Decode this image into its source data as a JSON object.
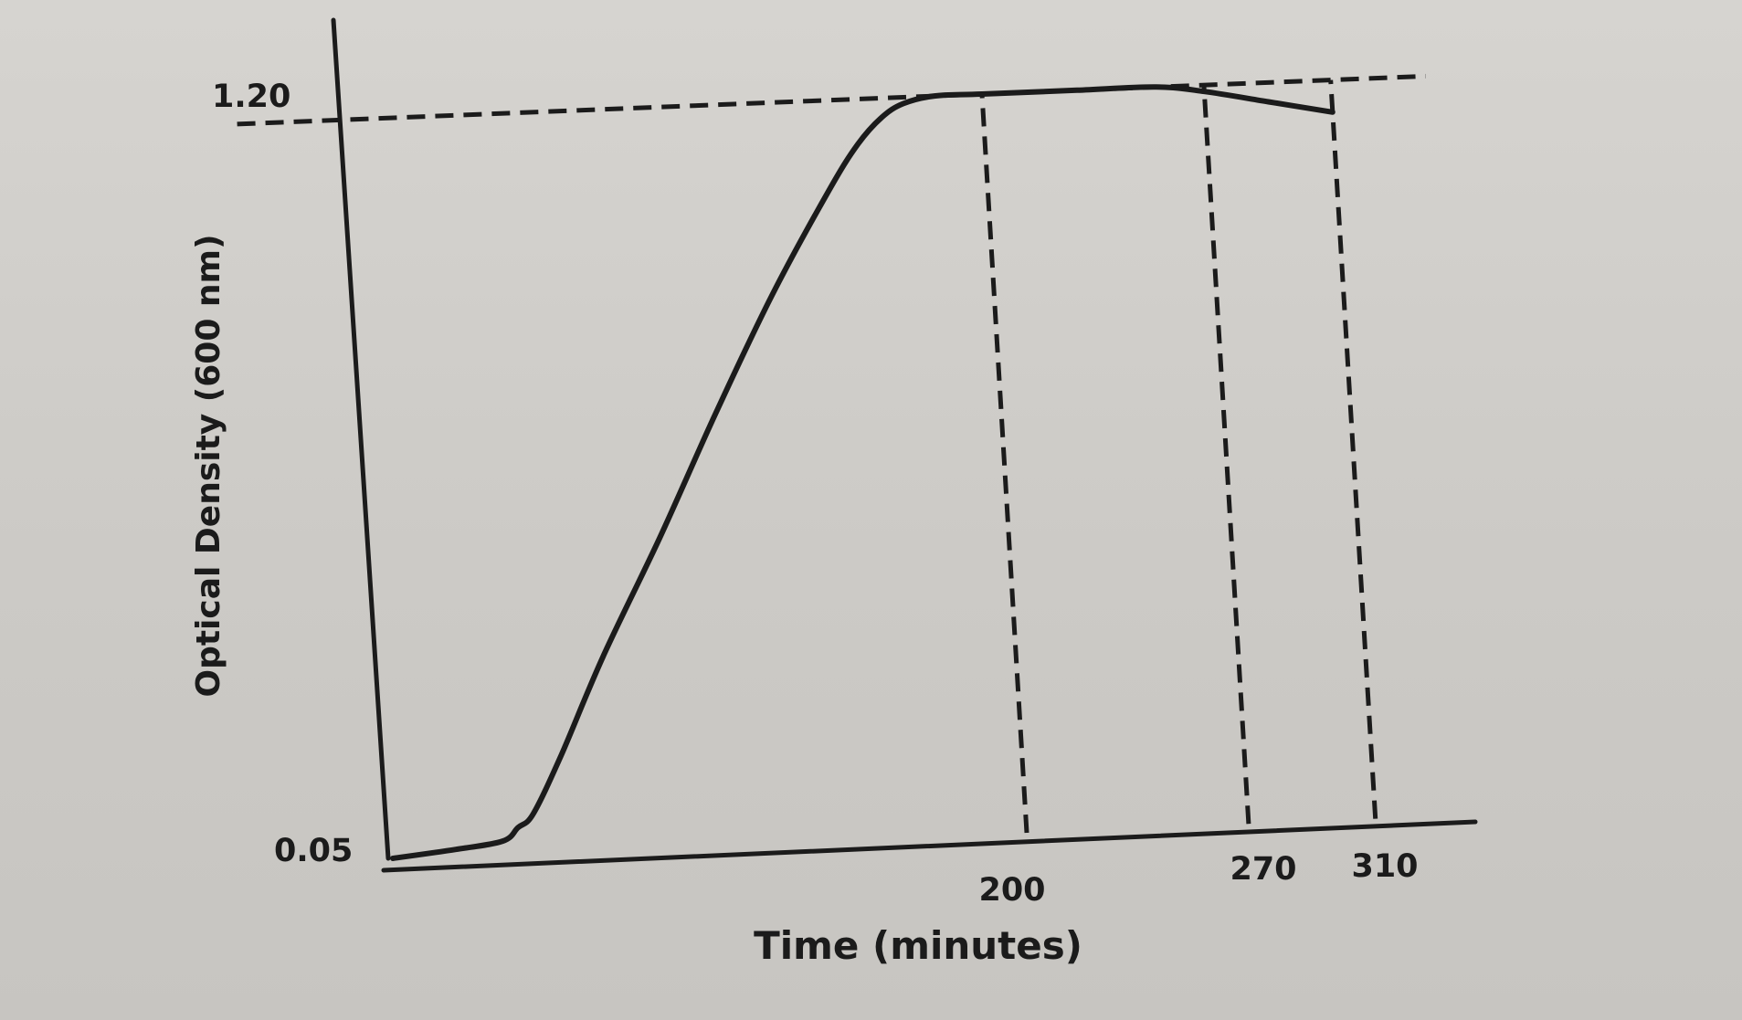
{
  "chart_data": {
    "type": "line",
    "title": "",
    "xlabel": "Time (minutes)",
    "ylabel": "Optical Density (600 nm)",
    "xlim": [
      0,
      340
    ],
    "ylim": [
      0.05,
      1.2
    ],
    "x_tick_labels": [
      "200",
      "270",
      "310"
    ],
    "y_tick_labels": [
      "0.05",
      "1.20"
    ],
    "grid": false,
    "legend": "none",
    "reference_lines": [
      {
        "orientation": "horizontal",
        "value": 1.2,
        "style": "dashed"
      },
      {
        "orientation": "vertical",
        "value": 200,
        "style": "dashed"
      },
      {
        "orientation": "vertical",
        "value": 270,
        "style": "dashed"
      },
      {
        "orientation": "vertical",
        "value": 310,
        "style": "dashed"
      }
    ],
    "series": [
      {
        "x": [
          0,
          20,
          35,
          40,
          45,
          55,
          70,
          90,
          110,
          130,
          150,
          160,
          168,
          175,
          185,
          200,
          230,
          255,
          270,
          290,
          310
        ],
        "values": [
          0.05,
          0.06,
          0.07,
          0.09,
          0.11,
          0.2,
          0.35,
          0.53,
          0.72,
          0.9,
          1.06,
          1.13,
          1.17,
          1.19,
          1.2,
          1.2,
          1.2,
          1.2,
          1.19,
          1.17,
          1.15
        ]
      }
    ]
  },
  "colors": {
    "ink": "#1b1b1b",
    "paper": "#cfcdc9"
  }
}
